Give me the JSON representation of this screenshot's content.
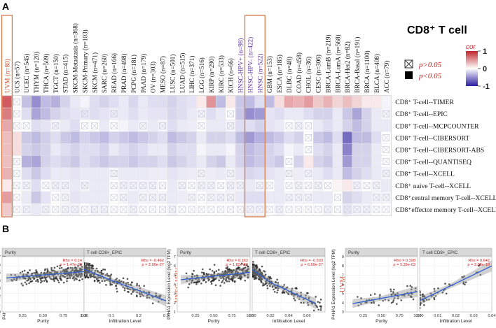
{
  "panel_labels": {
    "a": "A",
    "b": "B"
  },
  "chart_data": [
    {
      "type": "heatmap",
      "title": "CD8⁺ T cell",
      "columns": [
        "UVM (n=80)",
        "UCS (n=57)",
        "UCEC (n=545)",
        "THYM (n=120)",
        "THCA (n=509)",
        "TGCT (n=150)",
        "STAD (n=415)",
        "SKCM-Metastasis (n=368)",
        "SKCM-Primary (n=103)",
        "SKCM (n=471)",
        "SARC (n=260)",
        "READ (n=166)",
        "PRAD (n=498)",
        "PCPG (n=181)",
        "PAAD (n=179)",
        "OV (n=303)",
        "MESO (n=87)",
        "LUSC (n=501)",
        "LUAD (n=515)",
        "LIHC (n=371)",
        "LGG (n=516)",
        "KIRP (n=290)",
        "KIRC (n=533)",
        "KICH (n=66)",
        "HNSC-HPV+ (n=98)",
        "HNSC-HPV- (n=422)",
        "HNSC (n=522)",
        "GBM (n=153)",
        "ESCA (n=185)",
        "DLBC (n=48)",
        "COAD (n=458)",
        "CHOL (n=36)",
        "CESC (n=306)",
        "BRCA-LumB (n=219)",
        "BRCA-LumA (n=568)",
        "BRCA-Her2 (n=82)",
        "BRCA-Basal (n=191)",
        "BRCA (n=1100)",
        "BLCA (n=408)",
        "ACC (n=79)"
      ],
      "rows": [
        "CD8⁺ T-cell--TIMER",
        "CD8⁺ T-cell--EPIC",
        "CD8⁺ T-cell--MCPCOUNTER",
        "CD8⁺ T-cell--CIBERSORT",
        "CD8⁺ T-cell--CIBERSORT-ABS",
        "CD8⁺ T-cell--QUANTISEQ",
        "CD8⁺ T-cell--XCELL",
        "CD8⁺ naive T-cell--XCELL",
        "CD8⁺central memory T-cell--XCELL",
        "CD8⁺effector memory T-cell--XCELL"
      ],
      "highlighted_columns": [
        "UVM (n=80)",
        "HNSC-HPV- (n=422)",
        "HNSC (n=522)"
      ],
      "legend": {
        "cor_label": "cor",
        "ticks": [
          "1",
          "0",
          "-1"
        ],
        "range": [
          -1,
          1
        ],
        "colors": {
          "positive": "#c0262c",
          "zero": "#ffffff",
          "negative": "#2b1ea0"
        },
        "not_significant": "p>0.05",
        "significant": "p<0.05"
      },
      "notes": "values[row][col] are correlation coefficients; null = no value; nonsig marks cells with p>0.05",
      "values": [
        [
          0.75,
          0,
          -0.28,
          -0.5,
          -0.3,
          -0.35,
          -0.2,
          -0.1,
          -0.05,
          -0.15,
          -0.2,
          -0.15,
          -0.1,
          -0.18,
          -0.1,
          -0.15,
          -0.15,
          -0.2,
          -0.15,
          -0.12,
          0.1,
          0.5,
          -0.3,
          0.1,
          -0.25,
          -0.3,
          -0.15,
          -0.3,
          0.15,
          0.4,
          0.35,
          0.45,
          0.25,
          0.35,
          0.2,
          0.3,
          0.2,
          0.1,
          0.1,
          -0.05
        ],
        [
          0.6,
          0,
          -0.15,
          -0.4,
          -0.3,
          -0.2,
          -0.15,
          -0.12,
          -0.1,
          -0.15,
          -0.12,
          -0.08,
          -0.1,
          -0.15,
          -0.1,
          -0.12,
          -0.12,
          -0.18,
          -0.15,
          -0.1,
          -0.05,
          -0.15,
          -0.1,
          0,
          -0.25,
          -0.5,
          -0.45,
          -0.12,
          -0.15,
          -0.1,
          -0.1,
          -0.15,
          -0.2,
          -0.2,
          -0.1,
          -0.25,
          -0.4,
          -0.2,
          -0.1,
          -0.05
        ],
        [
          0.4,
          0,
          0,
          -0.15,
          -0.12,
          -0.05,
          -0.1,
          -0.15,
          0,
          0,
          -0.1,
          0,
          -0.05,
          -0.1,
          -0.05,
          -0.1,
          -0.05,
          -0.15,
          -0.1,
          -0.08,
          0,
          -0.1,
          -0.1,
          -0.05,
          -0.15,
          -0.15,
          -0.2,
          -0.12,
          -0.1,
          0,
          -0.05,
          0,
          -0.1,
          -0.15,
          -0.1,
          -0.2,
          -0.3,
          -0.2,
          -0.1,
          -0.1
        ],
        [
          0.3,
          0.15,
          -0.25,
          -0.3,
          -0.22,
          -0.15,
          -0.25,
          -0.3,
          -0.2,
          -0.25,
          -0.3,
          -0.2,
          -0.25,
          -0.3,
          -0.25,
          -0.2,
          -0.15,
          -0.3,
          -0.25,
          -0.2,
          -0.1,
          -0.2,
          -0.2,
          -0.15,
          -0.3,
          -0.45,
          -0.35,
          -0.3,
          -0.25,
          -0.15,
          -0.2,
          0,
          -0.25,
          -0.3,
          -0.15,
          -0.65,
          -0.3,
          -0.3,
          -0.15,
          0
        ],
        [
          0.3,
          0.15,
          -0.2,
          -0.25,
          -0.2,
          -0.1,
          -0.15,
          -0.2,
          -0.15,
          -0.15,
          -0.2,
          -0.1,
          -0.15,
          -0.2,
          -0.15,
          -0.1,
          -0.1,
          -0.2,
          -0.15,
          -0.15,
          -0.05,
          -0.1,
          -0.1,
          -0.05,
          -0.2,
          -0.3,
          -0.25,
          -0.2,
          -0.15,
          -0.05,
          -0.1,
          0,
          -0.15,
          -0.2,
          -0.1,
          -0.55,
          -0.2,
          -0.2,
          -0.1,
          0
        ],
        [
          0.3,
          0,
          -0.35,
          -0.4,
          -0.2,
          -0.15,
          -0.2,
          -0.25,
          -0.15,
          -0.2,
          -0.25,
          -0.2,
          -0.2,
          -0.25,
          -0.2,
          -0.2,
          -0.15,
          -0.25,
          -0.2,
          -0.15,
          -0.1,
          -0.2,
          -0.25,
          -0.1,
          -0.2,
          -0.3,
          -0.25,
          -0.2,
          -0.25,
          0,
          -0.2,
          0.1,
          -0.2,
          -0.25,
          -0.1,
          -0.45,
          -0.2,
          -0.2,
          -0.1,
          0
        ],
        [
          0.35,
          0,
          -0.15,
          -0.25,
          -0.15,
          -0.1,
          -0.1,
          -0.12,
          -0.1,
          -0.1,
          -0.1,
          -0.05,
          -0.1,
          -0.1,
          -0.1,
          -0.08,
          -0.08,
          -0.12,
          -0.1,
          -0.08,
          -0.05,
          -0.08,
          -0.1,
          -0.05,
          -0.12,
          -0.18,
          -0.15,
          -0.12,
          -0.1,
          -0.05,
          -0.08,
          -0.05,
          -0.1,
          -0.15,
          -0.1,
          -0.3,
          -0.2,
          -0.15,
          -0.1,
          -0.05
        ],
        [
          0.1,
          0,
          -0.05,
          -0.15,
          0,
          -0.05,
          -0.05,
          -0.1,
          -0.05,
          -0.1,
          -0.1,
          0,
          -0.05,
          -0.05,
          -0.05,
          -0.05,
          0,
          -0.1,
          -0.05,
          0,
          -0.05,
          -0.05,
          0,
          -0.05,
          -0.05,
          -0.1,
          -0.05,
          0,
          -0.1,
          0,
          -0.05,
          0,
          -0.05,
          0,
          0.05,
          0.1,
          -0.05,
          0,
          -0.05,
          -0.1
        ],
        [
          0.45,
          0,
          -0.1,
          -0.25,
          -0.12,
          0,
          -0.05,
          -0.12,
          -0.1,
          -0.1,
          -0.1,
          0,
          -0.05,
          -0.1,
          -0.05,
          -0.05,
          -0.05,
          -0.1,
          -0.08,
          -0.05,
          0,
          -0.05,
          -0.05,
          -0.05,
          -0.1,
          -0.15,
          -0.15,
          -0.1,
          -0.1,
          -0.05,
          -0.05,
          -0.05,
          -0.1,
          -0.1,
          0,
          -0.2,
          -0.15,
          -0.1,
          -0.05,
          -0.05
        ],
        [
          0.25,
          0,
          -0.05,
          -0.1,
          -0.05,
          0,
          -0.05,
          -0.05,
          0,
          -0.05,
          -0.05,
          0,
          0,
          -0.05,
          0,
          0,
          0,
          -0.05,
          0,
          0,
          0,
          0,
          0,
          0,
          0,
          -0.05,
          -0.05,
          0,
          -0.05,
          0,
          0,
          0,
          0,
          -0.05,
          0,
          -0.1,
          -0.05,
          -0.05,
          0,
          0
        ]
      ],
      "nonsig": [
        [
          0,
          1,
          0,
          0,
          0,
          0,
          0,
          0,
          0,
          0,
          0,
          0,
          0,
          0,
          0,
          0,
          0,
          0,
          0,
          0,
          0,
          0,
          0,
          0,
          0,
          0,
          0,
          0,
          0,
          0,
          0,
          0,
          0,
          0,
          0,
          0,
          0,
          0,
          0,
          0
        ],
        [
          0,
          1,
          0,
          0,
          0,
          0,
          0,
          0,
          1,
          0,
          0,
          1,
          0,
          0,
          0,
          0,
          0,
          0,
          0,
          0,
          1,
          0,
          0,
          1,
          0,
          0,
          0,
          0,
          0,
          0,
          0,
          0,
          0,
          0,
          0,
          0,
          0,
          0,
          0,
          1
        ],
        [
          0,
          1,
          1,
          0,
          0,
          1,
          0,
          0,
          1,
          1,
          0,
          1,
          0,
          0,
          1,
          0,
          1,
          0,
          0,
          0,
          1,
          0,
          0,
          1,
          0,
          0,
          0,
          0,
          0,
          1,
          1,
          1,
          0,
          0,
          0,
          0,
          0,
          0,
          0,
          0
        ],
        [
          0,
          0,
          0,
          0,
          0,
          0,
          0,
          0,
          0,
          0,
          0,
          0,
          0,
          0,
          0,
          0,
          0,
          0,
          0,
          0,
          0,
          0,
          0,
          0,
          0,
          0,
          0,
          0,
          0,
          0,
          0,
          1,
          0,
          0,
          0,
          0,
          0,
          0,
          0,
          1
        ],
        [
          0,
          0,
          0,
          0,
          0,
          0,
          0,
          0,
          0,
          0,
          0,
          0,
          0,
          0,
          0,
          0,
          0,
          0,
          0,
          0,
          0,
          0,
          0,
          0,
          0,
          0,
          0,
          0,
          0,
          0,
          0,
          1,
          0,
          0,
          0,
          0,
          0,
          0,
          0,
          1
        ],
        [
          0,
          1,
          0,
          0,
          0,
          0,
          0,
          0,
          0,
          0,
          0,
          0,
          0,
          0,
          0,
          0,
          0,
          0,
          0,
          0,
          0,
          0,
          0,
          0,
          0,
          0,
          0,
          0,
          0,
          1,
          0,
          0,
          0,
          0,
          0,
          0,
          0,
          0,
          0,
          1
        ],
        [
          0,
          1,
          0,
          0,
          0,
          0,
          0,
          0,
          0,
          0,
          0,
          1,
          0,
          0,
          0,
          0,
          0,
          0,
          0,
          0,
          1,
          0,
          0,
          1,
          0,
          0,
          0,
          0,
          0,
          1,
          0,
          1,
          0,
          0,
          0,
          0,
          0,
          0,
          0,
          1
        ],
        [
          0,
          1,
          1,
          0,
          1,
          1,
          1,
          0,
          1,
          0,
          0,
          1,
          1,
          1,
          1,
          1,
          1,
          0,
          1,
          1,
          1,
          1,
          1,
          1,
          1,
          0,
          1,
          1,
          0,
          1,
          1,
          1,
          1,
          1,
          0,
          0,
          1,
          1,
          1,
          0
        ],
        [
          0,
          1,
          0,
          0,
          0,
          1,
          1,
          0,
          0,
          0,
          0,
          1,
          1,
          0,
          1,
          1,
          1,
          0,
          0,
          1,
          1,
          1,
          1,
          1,
          0,
          0,
          0,
          0,
          0,
          1,
          1,
          1,
          0,
          0,
          1,
          0,
          0,
          0,
          1,
          1
        ],
        [
          0,
          1,
          1,
          0,
          1,
          1,
          1,
          1,
          1,
          1,
          1,
          1,
          1,
          1,
          1,
          1,
          1,
          1,
          1,
          1,
          1,
          1,
          1,
          1,
          1,
          1,
          1,
          1,
          1,
          1,
          1,
          1,
          1,
          1,
          1,
          1,
          1,
          1,
          1,
          1
        ]
      ]
    },
    {
      "type": "scatter",
      "group_label": "HNSC",
      "ylabel": "P4HA1 Expression Level (log2 TPM)",
      "ylim": [
        0,
        7
      ],
      "yticks": [
        "0",
        "1",
        "2",
        "3",
        "4",
        "5",
        "6",
        "7"
      ],
      "panels": [
        {
          "strip": "Purity",
          "xlabel": "Purity",
          "xlim": [
            0,
            1
          ],
          "xticks": [
            "0.25",
            "0.50",
            "0.75",
            "1.00"
          ],
          "rho": "Rho = 0.14",
          "p": "p = 1.47e-03",
          "fit": [
            [
              0.05,
              4.3
            ],
            [
              1.0,
              5.1
            ]
          ]
        },
        {
          "strip": "T cell CD8+_EPIC",
          "xlabel": "Infiltration Level",
          "xlim": [
            0,
            0.3
          ],
          "xticks": [
            "0.0",
            "0.1",
            "0.2",
            "0.3"
          ],
          "rho": "Rho = -0.462",
          "p": "p = 2.00e-27",
          "fit": [
            [
              0.0,
              5.4
            ],
            [
              0.1,
              4.0
            ],
            [
              0.3,
              1.4
            ]
          ]
        }
      ]
    },
    {
      "type": "scatter",
      "group_label": "HNSC-HPV-",
      "ylabel": "P4HA1 Expression Level (log2 TPM)",
      "ylim": [
        1,
        7
      ],
      "yticks": [
        "1",
        "2",
        "3",
        "4",
        "5",
        "6",
        "7"
      ],
      "panels": [
        {
          "strip": "Purity",
          "xlabel": "Purity",
          "xlim": [
            0,
            1
          ],
          "xticks": [
            "0.25",
            "0.50",
            "0.75",
            "1.00"
          ],
          "rho": "Rho = 0.162",
          "p": "p = 1.82e-03",
          "fit": [
            [
              0.05,
              4.5
            ],
            [
              1.0,
              5.3
            ]
          ]
        },
        {
          "strip": "T cell CD8+_EPIC",
          "xlabel": "Infiltration Level",
          "xlim": [
            0,
            0.08
          ],
          "xticks": [
            "0.00",
            "0.02",
            "0.04",
            "0.06"
          ],
          "rho": "Rho = -0.503",
          "p": "p = 6.69e-27",
          "fit": [
            [
              0.0,
              5.6
            ],
            [
              0.02,
              4.2
            ],
            [
              0.07,
              1.9
            ]
          ]
        }
      ]
    },
    {
      "type": "scatter",
      "group_label": "UVM",
      "ylabel": "P4HA1 Expression Level (log2 TPM)",
      "ylim": [
        3,
        9
      ],
      "yticks": [
        "3",
        "4",
        "5",
        "6",
        "7",
        "8",
        "9"
      ],
      "panels": [
        {
          "strip": "Purity",
          "xlabel": "Purity",
          "xlim": [
            0,
            1
          ],
          "xticks": [
            "0.25",
            "0.50",
            "0.75",
            "1.00"
          ],
          "rho": "Rho = 0.328",
          "p": "p = 3.39e-03",
          "fit": [
            [
              0.1,
              3.9
            ],
            [
              1.0,
              5.2
            ]
          ]
        },
        {
          "strip": "T cell CD8+_EPIC",
          "xlabel": "Infiltration Level",
          "xlim": [
            0,
            0.04
          ],
          "xticks": [
            "0.00",
            "0.01",
            "0.02",
            "0.03",
            "0.04"
          ],
          "rho": "Rho = 0.642",
          "p": "p = 3.08e-10",
          "fit": [
            [
              0.0,
              4.2
            ],
            [
              0.04,
              8.0
            ]
          ]
        }
      ]
    }
  ]
}
